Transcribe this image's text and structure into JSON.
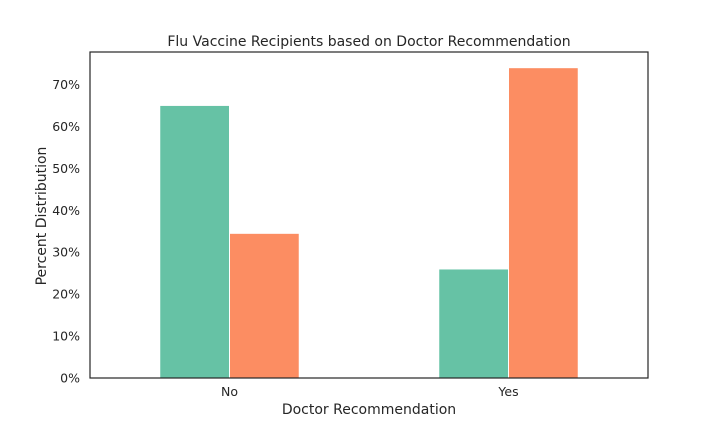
{
  "chart_data": {
    "type": "bar",
    "title": "Flu Vaccine Recipients based on Doctor Recommendation",
    "xlabel": "Doctor Recommendation",
    "ylabel": "Percent Distribution",
    "categories": [
      "No",
      "Yes"
    ],
    "series": [
      {
        "values": [
          0.65,
          0.26
        ],
        "color": "#66c2a5"
      },
      {
        "values": [
          0.345,
          0.74
        ],
        "color": "#fc8d62"
      }
    ],
    "ylim": [
      0,
      0.7774
    ],
    "yticks": [
      0,
      0.1,
      0.2,
      0.3,
      0.4,
      0.5,
      0.6,
      0.7
    ],
    "ytick_labels": [
      "0%",
      "10%",
      "20%",
      "30%",
      "40%",
      "50%",
      "60%",
      "70%"
    ],
    "grid": false,
    "legend": "none"
  }
}
